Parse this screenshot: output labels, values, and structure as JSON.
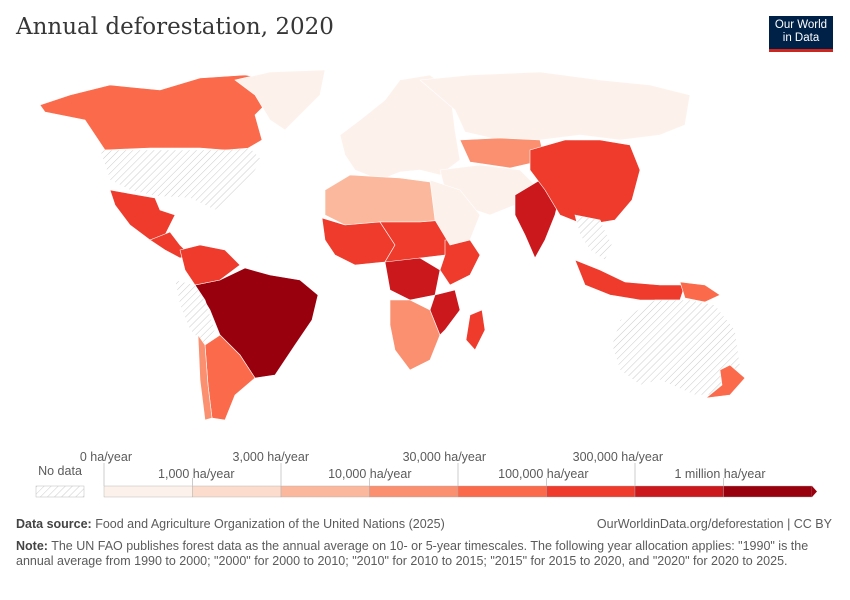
{
  "header": {
    "title": "Annual deforestation, 2020",
    "logo_line1": "Our World",
    "logo_line2": "in Data"
  },
  "chart_data": {
    "type": "choropleth-map",
    "title": "Annual deforestation, 2020",
    "unit": "ha/year",
    "legend": {
      "no_data_label": "No data",
      "tick_labels_top": [
        "0 ha/year",
        "3,000 ha/year",
        "30,000 ha/year",
        "300,000 ha/year"
      ],
      "tick_labels_bottom": [
        "1,000 ha/year",
        "10,000 ha/year",
        "100,000 ha/year",
        "1 million ha/year"
      ],
      "bins": [
        0,
        1000,
        3000,
        10000,
        30000,
        100000,
        300000,
        1000000
      ],
      "colors": [
        "#fdf1ec",
        "#fcdccc",
        "#fcb89c",
        "#fb9070",
        "#fb6a4a",
        "#ee3b2c",
        "#cb181d",
        "#99000d"
      ],
      "placement": "bottom"
    },
    "regions": [
      {
        "name": "Canada",
        "bin": 4
      },
      {
        "name": "United States",
        "bin": -1
      },
      {
        "name": "Greenland",
        "bin": 0
      },
      {
        "name": "Mexico",
        "bin": 5
      },
      {
        "name": "Central America",
        "bin": 5
      },
      {
        "name": "Brazil",
        "bin": 7
      },
      {
        "name": "Colombia/Venezuela",
        "bin": 5
      },
      {
        "name": "Peru/Bolivia",
        "bin": -1
      },
      {
        "name": "Argentina",
        "bin": 4
      },
      {
        "name": "Chile",
        "bin": 3
      },
      {
        "name": "Europe",
        "bin": 0
      },
      {
        "name": "Russia",
        "bin": 0
      },
      {
        "name": "Central Asia",
        "bin": 0
      },
      {
        "name": "Kazakhstan",
        "bin": 3
      },
      {
        "name": "North Africa",
        "bin": 2
      },
      {
        "name": "West Africa",
        "bin": 5
      },
      {
        "name": "Central Africa",
        "bin": 5
      },
      {
        "name": "DR Congo",
        "bin": 6
      },
      {
        "name": "East Africa",
        "bin": 5
      },
      {
        "name": "Southern Africa",
        "bin": 3
      },
      {
        "name": "Mozambique",
        "bin": 6
      },
      {
        "name": "Madagascar",
        "bin": 5
      },
      {
        "name": "Middle East",
        "bin": 0
      },
      {
        "name": "India",
        "bin": 6
      },
      {
        "name": "China",
        "bin": 5
      },
      {
        "name": "Southeast Asia",
        "bin": -1
      },
      {
        "name": "Indonesia",
        "bin": 5
      },
      {
        "name": "Papua New Guinea",
        "bin": 4
      },
      {
        "name": "Australia",
        "bin": -1
      },
      {
        "name": "New Zealand",
        "bin": 4
      }
    ]
  },
  "footer": {
    "source_label": "Data source:",
    "source_text": "Food and Agriculture Organization of the United Nations (2025)",
    "url": "OurWorldinData.org/deforestation | CC BY",
    "note_label": "Note:",
    "note_text": "The UN FAO publishes forest data as the annual average on 10- or 5-year timescales. The following year allocation applies: \"1990\" is the annual average from 1990 to 2000; \"2000\" for 2000 to 2010; \"2010\" for 2010 to 2015; \"2015\" for 2015 to 2020, and \"2020\" for 2020 to 2025."
  }
}
